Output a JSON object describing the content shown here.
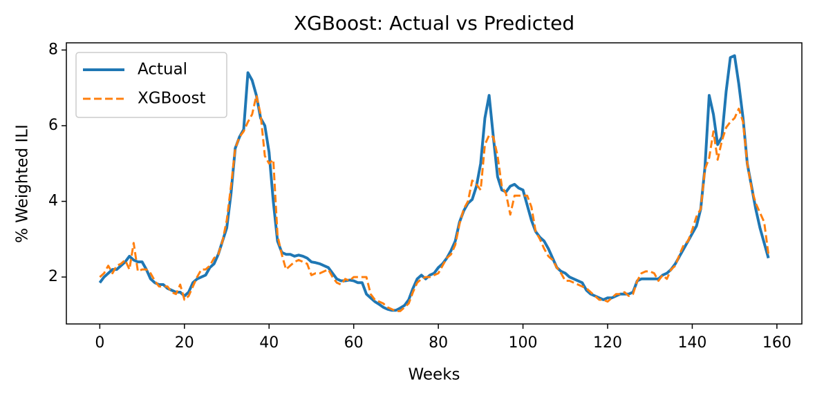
{
  "chart_data": {
    "type": "line",
    "title": "XGBoost: Actual vs Predicted",
    "x_label": "Weeks",
    "y_label": "% Weighted ILI",
    "x": [
      0,
      1,
      2,
      3,
      4,
      5,
      6,
      7,
      8,
      9,
      10,
      11,
      12,
      13,
      14,
      15,
      16,
      17,
      18,
      19,
      20,
      21,
      22,
      23,
      24,
      25,
      26,
      27,
      28,
      29,
      30,
      31,
      32,
      33,
      34,
      35,
      36,
      37,
      38,
      39,
      40,
      41,
      42,
      43,
      44,
      45,
      46,
      47,
      48,
      49,
      50,
      51,
      52,
      53,
      54,
      55,
      56,
      57,
      58,
      59,
      60,
      61,
      62,
      63,
      64,
      65,
      66,
      67,
      68,
      69,
      70,
      71,
      72,
      73,
      74,
      75,
      76,
      77,
      78,
      79,
      80,
      81,
      82,
      83,
      84,
      85,
      86,
      87,
      88,
      89,
      90,
      91,
      92,
      93,
      94,
      95,
      96,
      97,
      98,
      99,
      100,
      101,
      102,
      103,
      104,
      105,
      106,
      107,
      108,
      109,
      110,
      111,
      112,
      113,
      114,
      115,
      116,
      117,
      118,
      119,
      120,
      121,
      122,
      123,
      124,
      125,
      126,
      127,
      128,
      129,
      130,
      131,
      132,
      133,
      134,
      135,
      136,
      137,
      138,
      139,
      140,
      141,
      142,
      143,
      144,
      145,
      146,
      147,
      148,
      149,
      150,
      151,
      152,
      153,
      154,
      155,
      156,
      157,
      158
    ],
    "series": [
      {
        "name": "Actual",
        "color": "#1f77b4",
        "dash": "solid",
        "values": [
          1.85,
          2.0,
          2.1,
          2.2,
          2.2,
          2.3,
          2.4,
          2.55,
          2.45,
          2.4,
          2.4,
          2.2,
          1.95,
          1.85,
          1.8,
          1.8,
          1.7,
          1.65,
          1.6,
          1.6,
          1.5,
          1.6,
          1.85,
          1.95,
          2.0,
          2.05,
          2.25,
          2.35,
          2.6,
          2.95,
          3.3,
          4.2,
          5.4,
          5.7,
          5.9,
          7.4,
          7.2,
          6.8,
          6.2,
          6.0,
          5.3,
          4.0,
          2.95,
          2.65,
          2.6,
          2.6,
          2.55,
          2.58,
          2.55,
          2.5,
          2.4,
          2.38,
          2.35,
          2.3,
          2.25,
          2.1,
          1.95,
          1.9,
          1.9,
          1.92,
          1.9,
          1.85,
          1.85,
          1.55,
          1.45,
          1.35,
          1.28,
          1.2,
          1.15,
          1.12,
          1.12,
          1.18,
          1.25,
          1.4,
          1.7,
          1.95,
          2.05,
          1.95,
          2.05,
          2.1,
          2.25,
          2.35,
          2.5,
          2.7,
          2.95,
          3.45,
          3.75,
          3.95,
          4.05,
          4.4,
          5.0,
          6.2,
          6.8,
          5.7,
          4.65,
          4.3,
          4.25,
          4.4,
          4.45,
          4.35,
          4.3,
          3.9,
          3.5,
          3.2,
          3.05,
          2.95,
          2.75,
          2.5,
          2.25,
          2.15,
          2.1,
          2.0,
          1.95,
          1.9,
          1.85,
          1.65,
          1.55,
          1.5,
          1.45,
          1.4,
          1.45,
          1.45,
          1.5,
          1.55,
          1.55,
          1.55,
          1.6,
          1.9,
          1.95,
          1.95,
          1.95,
          1.95,
          1.95,
          2.05,
          2.1,
          2.2,
          2.35,
          2.55,
          2.75,
          2.95,
          3.15,
          3.35,
          3.8,
          4.9,
          6.8,
          6.3,
          5.5,
          5.7,
          6.9,
          7.8,
          7.85,
          7.1,
          6.2,
          5.0,
          4.4,
          3.8,
          3.3,
          2.9,
          2.5
        ]
      },
      {
        "name": "XGBoost",
        "color": "#ff7f0e",
        "dash": "dashed",
        "values": [
          2.0,
          2.1,
          2.3,
          2.1,
          2.3,
          2.35,
          2.45,
          2.2,
          2.9,
          2.15,
          2.2,
          2.2,
          2.1,
          1.9,
          1.75,
          1.75,
          1.75,
          1.6,
          1.55,
          1.8,
          1.4,
          1.5,
          1.75,
          2.0,
          2.2,
          2.2,
          2.3,
          2.5,
          2.6,
          2.95,
          3.5,
          4.4,
          5.4,
          5.7,
          5.85,
          6.1,
          6.3,
          6.8,
          6.3,
          5.2,
          5.0,
          5.1,
          3.1,
          2.6,
          2.2,
          2.3,
          2.4,
          2.45,
          2.4,
          2.35,
          2.05,
          2.1,
          2.1,
          2.15,
          2.2,
          2.0,
          1.85,
          1.8,
          1.95,
          1.9,
          2.0,
          2.0,
          2.0,
          2.0,
          1.55,
          1.4,
          1.35,
          1.3,
          1.2,
          1.15,
          1.1,
          1.1,
          1.2,
          1.3,
          1.6,
          1.85,
          1.95,
          2.0,
          2.0,
          2.05,
          2.1,
          2.3,
          2.5,
          2.6,
          2.85,
          3.4,
          3.8,
          4.0,
          4.55,
          4.45,
          4.3,
          5.5,
          5.75,
          5.7,
          5.2,
          4.4,
          4.2,
          3.65,
          4.15,
          4.15,
          4.15,
          4.15,
          3.85,
          3.2,
          3.0,
          2.75,
          2.55,
          2.45,
          2.25,
          2.1,
          1.9,
          1.9,
          1.85,
          1.8,
          1.75,
          1.7,
          1.6,
          1.5,
          1.4,
          1.4,
          1.35,
          1.45,
          1.55,
          1.55,
          1.6,
          1.5,
          1.55,
          1.9,
          2.1,
          2.15,
          2.15,
          2.1,
          1.9,
          2.05,
          1.95,
          2.2,
          2.3,
          2.6,
          2.85,
          2.95,
          3.25,
          3.6,
          3.8,
          4.85,
          5.15,
          5.85,
          5.1,
          5.6,
          5.95,
          6.1,
          6.2,
          6.45,
          6.1,
          5.0,
          4.35,
          3.95,
          3.7,
          3.45,
          2.6
        ]
      }
    ],
    "xlim": [
      -7.9,
      165.9
    ],
    "ylim": [
      0.76,
      8.19
    ],
    "xticks": [
      0,
      20,
      40,
      60,
      80,
      100,
      120,
      140,
      160
    ],
    "yticks": [
      2,
      4,
      6,
      8
    ],
    "legend": "upper left"
  }
}
